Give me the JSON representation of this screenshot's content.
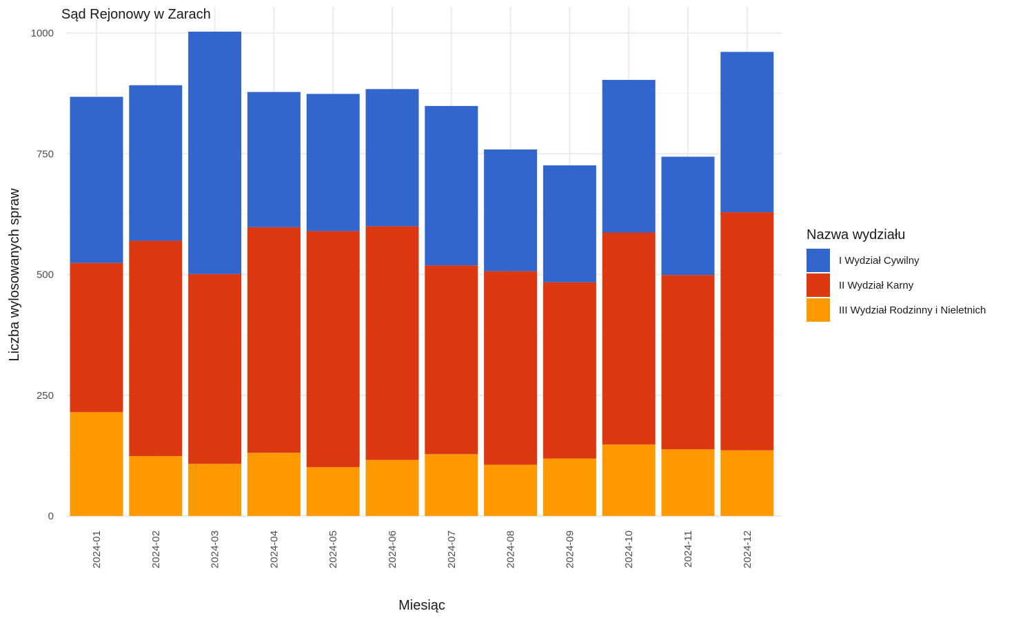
{
  "chart_data": {
    "type": "bar",
    "stacked": true,
    "title": "Sąd Rejonowy w Zarach",
    "xlabel": "Miesiąc",
    "ylabel": "Liczba wylosowanych spraw",
    "ylim": [
      0,
      1000
    ],
    "y_ticks": [
      "0",
      "250",
      "500",
      "750",
      "1000"
    ],
    "grid": true,
    "categories": [
      "2024-01",
      "2024-02",
      "2024-03",
      "2024-04",
      "2024-05",
      "2024-06",
      "2024-07",
      "2024-08",
      "2024-09",
      "2024-10",
      "2024-11",
      "2024-12"
    ],
    "series": [
      {
        "name": "III Wydział Rodzinny i Nieletnich",
        "color": "#FF9900",
        "values": [
          215,
          124,
          108,
          131,
          101,
          116,
          128,
          106,
          119,
          148,
          138,
          136
        ]
      },
      {
        "name": "II Wydział Karny",
        "color": "#DC3912",
        "values": [
          309,
          446,
          393,
          467,
          489,
          484,
          391,
          401,
          365,
          439,
          361,
          493
        ]
      },
      {
        "name": "I Wydział Cywilny",
        "color": "#3366CC",
        "values": [
          344,
          322,
          502,
          280,
          284,
          284,
          330,
          252,
          242,
          316,
          245,
          332
        ]
      }
    ],
    "legend": {
      "title": "Nazwa wydziału",
      "position": "right",
      "order": [
        "I Wydział Cywilny",
        "II Wydział Karny",
        "III Wydział Rodzinny i Nieletnich"
      ]
    }
  }
}
